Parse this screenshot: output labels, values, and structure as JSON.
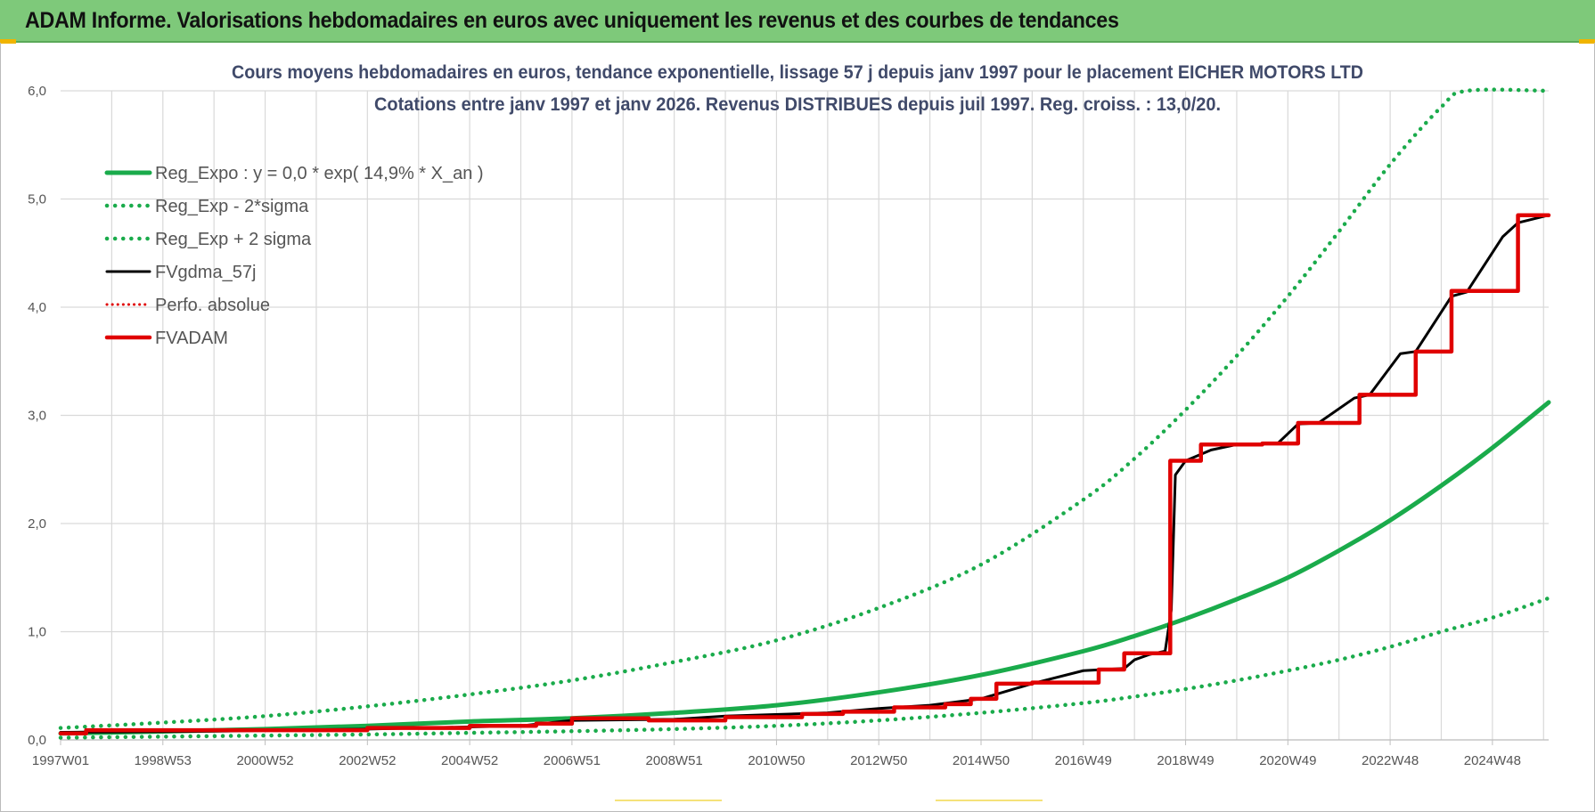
{
  "header": {
    "title": "ADAM Informe. Valorisations hebdomadaires en euros avec uniquement les revenus et des courbes de tendances"
  },
  "colors": {
    "green": "#1aab4b",
    "black": "#000000",
    "red": "#e00000",
    "header_bg": "#7ec97a"
  },
  "chart_data": {
    "type": "line",
    "title": "Cours moyens hebdomadaires en euros, tendance exponentielle, lissage 57 j depuis janv 1997 pour le placement EICHER MOTORS LTD",
    "subtitle": "Cotations entre janv 1997 et janv 2026. Revenus DISTRIBUES depuis juil 1997. Reg. croiss. : 13,0/20.",
    "xlabel": "",
    "ylabel": "",
    "xlim": [
      1997.0,
      2026.1
    ],
    "ylim": [
      0,
      6
    ],
    "grid": true,
    "legend_position": "top-left",
    "x_tick_positions": [
      1997.0,
      1999.0,
      2001.0,
      2003.0,
      2005.0,
      2007.0,
      2009.0,
      2011.0,
      2013.0,
      2015.0,
      2017.0,
      2019.0,
      2021.0,
      2023.0,
      2025.0
    ],
    "x_tick_labels": [
      "1997W01",
      "1998W53",
      "2000W52",
      "2002W52",
      "2004W52",
      "2006W51",
      "2008W51",
      "2010W50",
      "2012W50",
      "2014W50",
      "2016W49",
      "2018W49",
      "2020W49",
      "2022W48",
      "2024W48"
    ],
    "y_ticks": [
      0,
      1,
      2,
      3,
      4,
      5,
      6
    ],
    "y_tick_labels": [
      "0,0",
      "1,0",
      "2,0",
      "3,0",
      "4,0",
      "5,0",
      "6,0"
    ],
    "series": [
      {
        "name": "Reg_Expo : y = 0,0 * exp( 14,9% *  X_an )",
        "style": "solid-green",
        "x": [
          1997.0,
          1999.0,
          2001.0,
          2003.0,
          2005.0,
          2007.0,
          2009.0,
          2011.0,
          2013.0,
          2015.0,
          2017.0,
          2018.0,
          2019.0,
          2020.0,
          2021.0,
          2022.0,
          2023.0,
          2024.0,
          2025.0,
          2026.1
        ],
        "y": [
          0.06,
          0.078,
          0.1,
          0.13,
          0.17,
          0.2,
          0.25,
          0.32,
          0.44,
          0.6,
          0.82,
          0.96,
          1.12,
          1.3,
          1.5,
          1.75,
          2.03,
          2.35,
          2.7,
          3.12
        ]
      },
      {
        "name": "Reg_Exp - 2*sigma",
        "style": "dotted-green",
        "x": [
          1997.0,
          1999.0,
          2001.0,
          2003.0,
          2005.0,
          2007.0,
          2009.0,
          2011.0,
          2013.0,
          2015.0,
          2017.0,
          2018.0,
          2019.0,
          2020.0,
          2021.0,
          2022.0,
          2023.0,
          2024.0,
          2025.0,
          2026.1
        ],
        "y": [
          0.02,
          0.03,
          0.04,
          0.05,
          0.065,
          0.08,
          0.1,
          0.13,
          0.18,
          0.25,
          0.34,
          0.4,
          0.47,
          0.55,
          0.64,
          0.74,
          0.86,
          1.0,
          1.13,
          1.31
        ]
      },
      {
        "name": "Reg_Exp + 2 sigma",
        "style": "dotted-green",
        "x": [
          1997.0,
          1999.0,
          2001.0,
          2003.0,
          2005.0,
          2007.0,
          2009.0,
          2011.0,
          2013.0,
          2015.0,
          2017.0,
          2018.0,
          2019.0,
          2020.0,
          2021.0,
          2022.0,
          2023.0,
          2024.0,
          2024.5,
          2026.1
        ],
        "y": [
          0.11,
          0.16,
          0.22,
          0.31,
          0.42,
          0.55,
          0.72,
          0.92,
          1.22,
          1.62,
          2.22,
          2.6,
          3.05,
          3.55,
          4.1,
          4.7,
          5.32,
          5.85,
          6.0,
          6.0
        ]
      },
      {
        "name": "FVgdma_57j",
        "style": "solid-black",
        "x": [
          1997.0,
          2000.0,
          2003.0,
          2006.0,
          2007.0,
          2009.0,
          2010.0,
          2012.0,
          2013.0,
          2014.0,
          2015.0,
          2016.0,
          2017.0,
          2017.8,
          2018.0,
          2018.3,
          2018.6,
          2018.72,
          2018.8,
          2019.0,
          2019.5,
          2020.0,
          2020.8,
          2021.2,
          2021.6,
          2022.3,
          2022.6,
          2023.2,
          2023.5,
          2024.2,
          2024.5,
          2025.2,
          2025.5,
          2026.1
        ],
        "y": [
          0.07,
          0.08,
          0.1,
          0.13,
          0.18,
          0.19,
          0.22,
          0.25,
          0.29,
          0.32,
          0.38,
          0.52,
          0.64,
          0.66,
          0.74,
          0.79,
          0.82,
          1.2,
          2.45,
          2.58,
          2.68,
          2.73,
          2.74,
          2.92,
          2.93,
          3.16,
          3.19,
          3.57,
          3.59,
          4.1,
          4.14,
          4.65,
          4.78,
          4.85
        ]
      },
      {
        "name": "Perfo. absolue",
        "style": "dotted-red",
        "x": [],
        "y": []
      },
      {
        "name": "FVADAM",
        "style": "solid-red-step",
        "x": [
          1997.0,
          1997.5,
          2000.0,
          2003.0,
          2005.0,
          2006.3,
          2007.0,
          2008.5,
          2010.0,
          2011.5,
          2012.3,
          2013.3,
          2014.3,
          2014.8,
          2015.3,
          2016.0,
          2017.3,
          2017.8,
          2018.7,
          2019.3,
          2020.5,
          2021.2,
          2022.4,
          2023.5,
          2024.2,
          2025.5,
          2026.1
        ],
        "y": [
          0.06,
          0.09,
          0.09,
          0.11,
          0.13,
          0.15,
          0.2,
          0.18,
          0.21,
          0.24,
          0.26,
          0.3,
          0.33,
          0.38,
          0.52,
          0.53,
          0.65,
          0.8,
          2.58,
          2.73,
          2.74,
          2.93,
          3.19,
          3.59,
          4.15,
          4.85,
          4.85
        ]
      }
    ]
  }
}
